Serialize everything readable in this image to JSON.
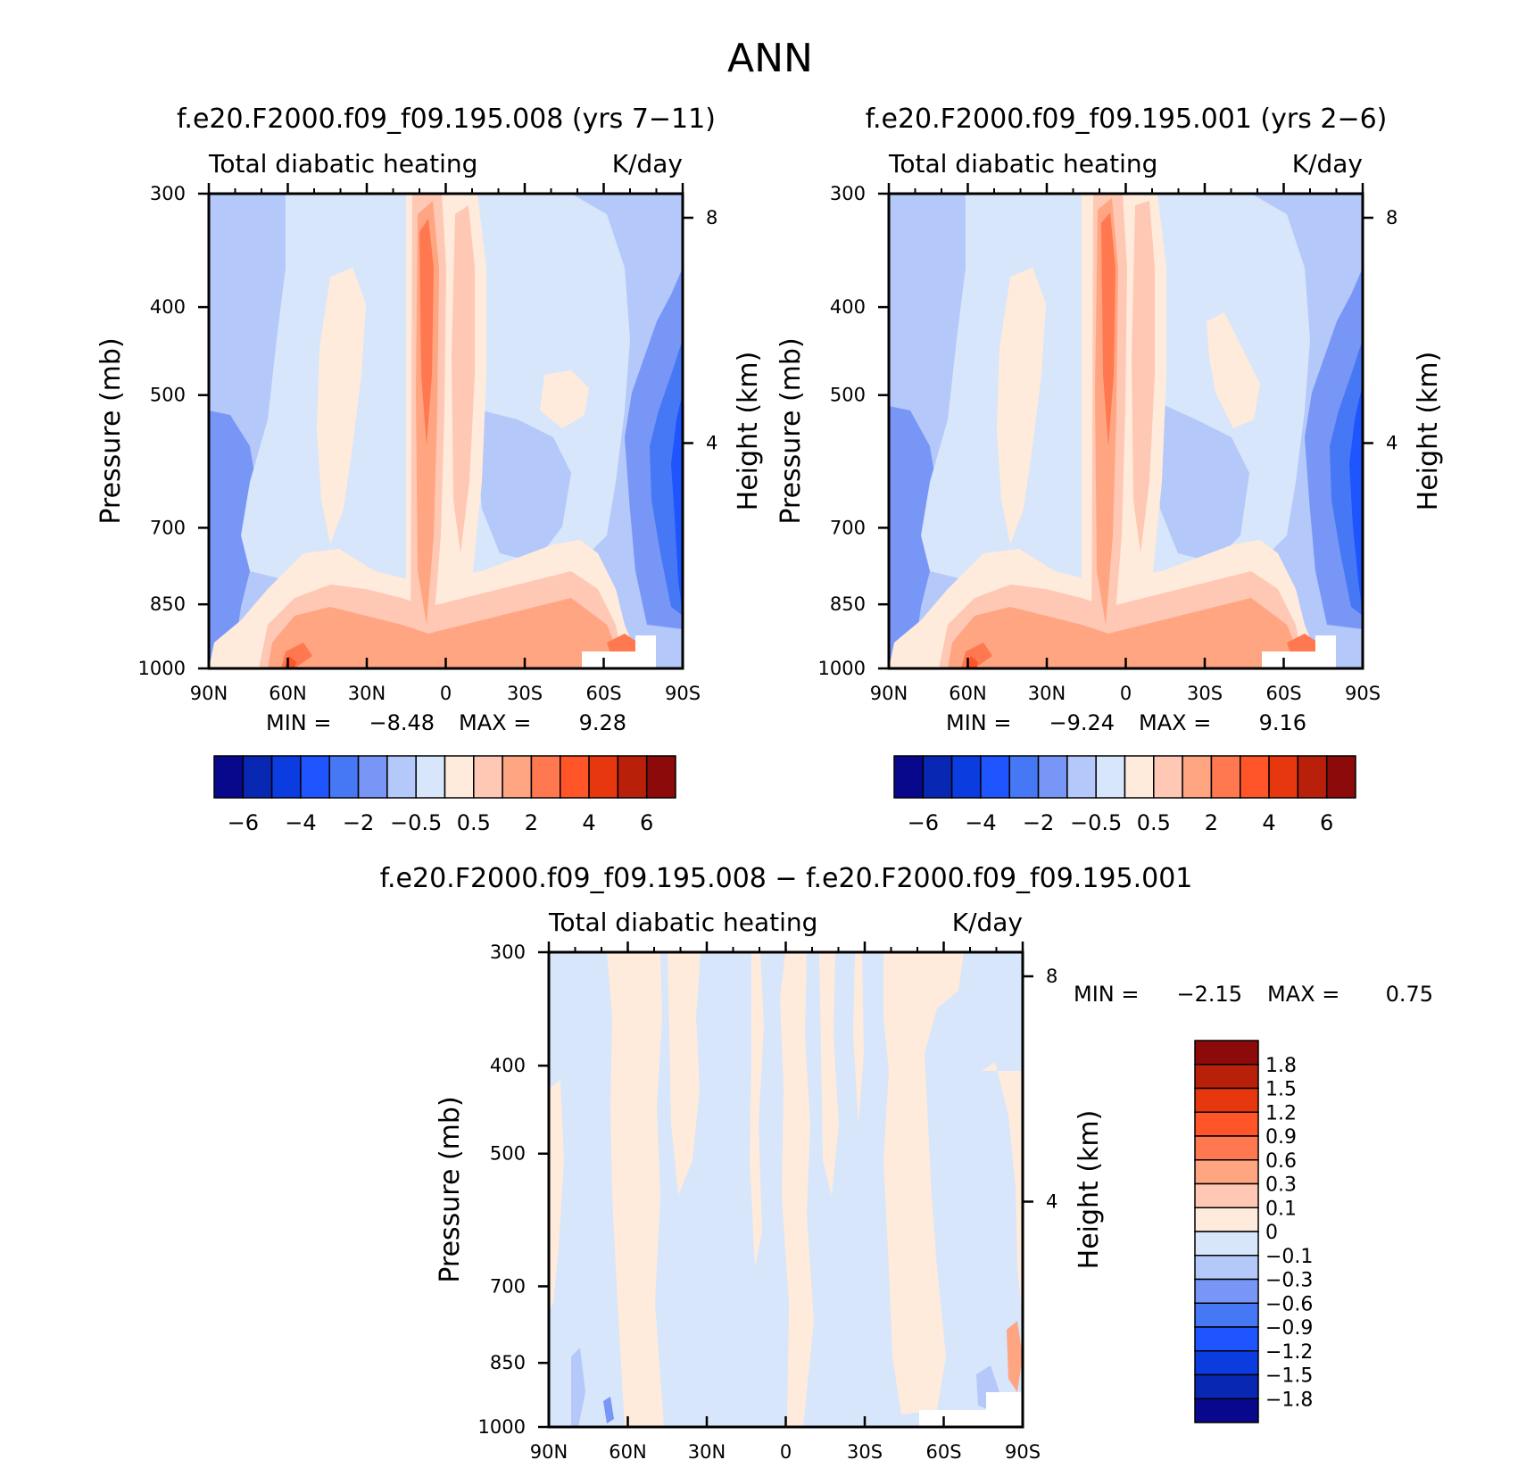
{
  "figure": {
    "title": "ANN"
  },
  "colors": {
    "full_palette": [
      "#08088c",
      "#0828b4",
      "#0a3ce0",
      "#1e55ff",
      "#4678f5",
      "#7896f5",
      "#b4c8fa",
      "#d7e6fa",
      "#ffebdc",
      "#ffc8b4",
      "#ffa582",
      "#ff7850",
      "#ff5528",
      "#e6370f",
      "#b9200a",
      "#8c0a0a"
    ],
    "diff_palette": [
      "#08088c",
      "#0828b4",
      "#0a3ce0",
      "#1e55ff",
      "#4678f5",
      "#7896f5",
      "#b4c8fa",
      "#d7e6fa",
      "#ffebdc",
      "#ffc8b4",
      "#ffa582",
      "#ff7850",
      "#ff5528",
      "#e6370f",
      "#b9200a",
      "#8c0a0a"
    ]
  },
  "chart_data": [
    {
      "type": "heatmap",
      "title": "f.e20.F2000.f09_f09.195.008 (yrs 7−11)",
      "subtitle_left": "Total diabatic heating",
      "subtitle_right": "K/day",
      "ylabel": "Pressure (mb)",
      "ylabel_right": "Height (km)",
      "x_ticks": [
        "90N",
        "60N",
        "30N",
        "0",
        "30S",
        "60S",
        "90S"
      ],
      "y_ticks": [
        "300",
        "400",
        "500",
        "700",
        "850",
        "1000"
      ],
      "y_ticks_right": [
        "8",
        "4"
      ],
      "min_label": "MIN =",
      "min": "−8.48",
      "max_label": "MAX =",
      "max": "9.28",
      "colorbar_labels": [
        "−6",
        "−4",
        "−2",
        "−0.5",
        "0.5",
        "2",
        "4",
        "6"
      ]
    },
    {
      "type": "heatmap",
      "title": "f.e20.F2000.f09_f09.195.001 (yrs 2−6)",
      "subtitle_left": "Total diabatic heating",
      "subtitle_right": "K/day",
      "ylabel": "Pressure (mb)",
      "ylabel_right": "Height (km)",
      "x_ticks": [
        "90N",
        "60N",
        "30N",
        "0",
        "30S",
        "60S",
        "90S"
      ],
      "y_ticks": [
        "300",
        "400",
        "500",
        "700",
        "850",
        "1000"
      ],
      "y_ticks_right": [
        "8",
        "4"
      ],
      "min_label": "MIN =",
      "min": "−9.24",
      "max_label": "MAX =",
      "max": "9.16",
      "colorbar_labels": [
        "−6",
        "−4",
        "−2",
        "−0.5",
        "0.5",
        "2",
        "4",
        "6"
      ]
    },
    {
      "type": "heatmap",
      "title": "f.e20.F2000.f09_f09.195.008 − f.e20.F2000.f09_f09.195.001",
      "subtitle_left": "Total diabatic heating",
      "subtitle_right": "K/day",
      "ylabel": "Pressure (mb)",
      "ylabel_right": "Height (km)",
      "x_ticks": [
        "90N",
        "60N",
        "30N",
        "0",
        "30S",
        "60S",
        "90S"
      ],
      "y_ticks": [
        "300",
        "400",
        "500",
        "700",
        "850",
        "1000"
      ],
      "y_ticks_right": [
        "8",
        "4"
      ],
      "min_label": "MIN =",
      "min": "−2.15",
      "max_label": "MAX =",
      "max": "0.75",
      "colorbar_labels": [
        "1.8",
        "1.5",
        "1.2",
        "0.9",
        "0.6",
        "0.3",
        "0.1",
        "0",
        "−0.1",
        "−0.3",
        "−0.6",
        "−0.9",
        "−1.2",
        "−1.5",
        "−1.8"
      ]
    }
  ]
}
